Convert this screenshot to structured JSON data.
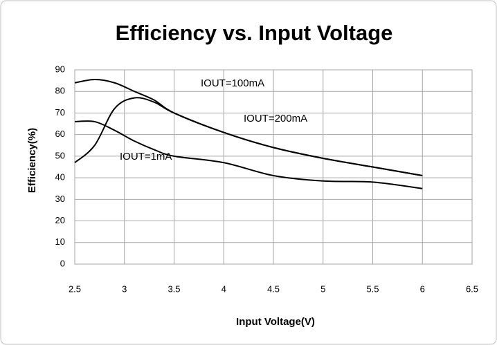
{
  "chart_data": {
    "type": "line",
    "title": "Efficiency vs. Input Voltage",
    "xlabel": "Input Voltage(V)",
    "ylabel": "Efficiency(%)",
    "x": [
      2.5,
      2.7,
      2.9,
      3.1,
      3.3,
      3.5,
      4,
      4.5,
      5,
      5.5,
      6
    ],
    "series": [
      {
        "name": "IOUT=100mA",
        "color": "#000000",
        "values": [
          84,
          85.5,
          84,
          80,
          76,
          70,
          61,
          54,
          49,
          45,
          41
        ]
      },
      {
        "name": "IOUT=200mA",
        "color": "#000000",
        "values": [
          47,
          55,
          72,
          77,
          75,
          70,
          61,
          54,
          49,
          45,
          41
        ]
      },
      {
        "name": "IOUT=1mA",
        "color": "#000000",
        "values": [
          66,
          66,
          62,
          57,
          53,
          50,
          47,
          41,
          38.5,
          38,
          35
        ]
      }
    ],
    "xlim": [
      2.5,
      6.5
    ],
    "xticks": [
      2.5,
      3,
      3.5,
      4,
      4.5,
      5,
      5.5,
      6,
      6.5
    ],
    "ylim": [
      0,
      90
    ],
    "yticks": [
      0,
      10,
      20,
      30,
      40,
      50,
      60,
      70,
      80,
      90
    ],
    "grid": true
  }
}
